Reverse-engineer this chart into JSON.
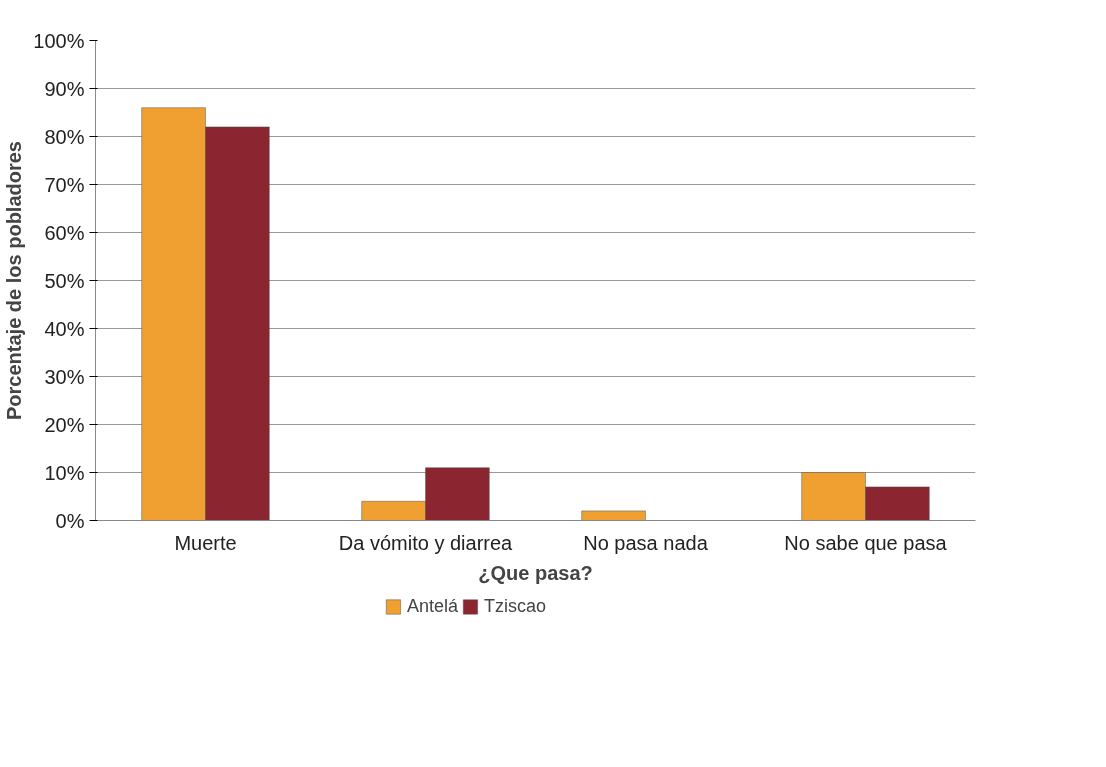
{
  "chart_data": {
    "type": "bar",
    "xlabel": "¿Que pasa?",
    "ylabel": "Porcentaje de los pobladores",
    "categories": [
      "Muerte",
      "Da vómito y diarrea",
      "No pasa nada",
      "No sabe que pasa"
    ],
    "series": [
      {
        "name": "Antelá",
        "color": "#f0a030",
        "values": [
          86,
          4,
          2,
          10
        ]
      },
      {
        "name": "Tziscao",
        "color": "#8b2530",
        "values": [
          82,
          11,
          null,
          7
        ]
      }
    ],
    "ylim": [
      0,
      100
    ],
    "yticks": [
      {
        "value": 0,
        "label": "0%"
      },
      {
        "value": 10,
        "label": "10%"
      },
      {
        "value": 20,
        "label": "20%"
      },
      {
        "value": 30,
        "label": "30%"
      },
      {
        "value": 40,
        "label": "40%"
      },
      {
        "value": 50,
        "label": "50%"
      },
      {
        "value": 60,
        "label": "60%"
      },
      {
        "value": 70,
        "label": "70%"
      },
      {
        "value": 80,
        "label": "80%"
      },
      {
        "value": 90,
        "label": "90%"
      },
      {
        "value": 100,
        "label": "100%"
      }
    ],
    "grid": "y",
    "legend": "bottom"
  }
}
